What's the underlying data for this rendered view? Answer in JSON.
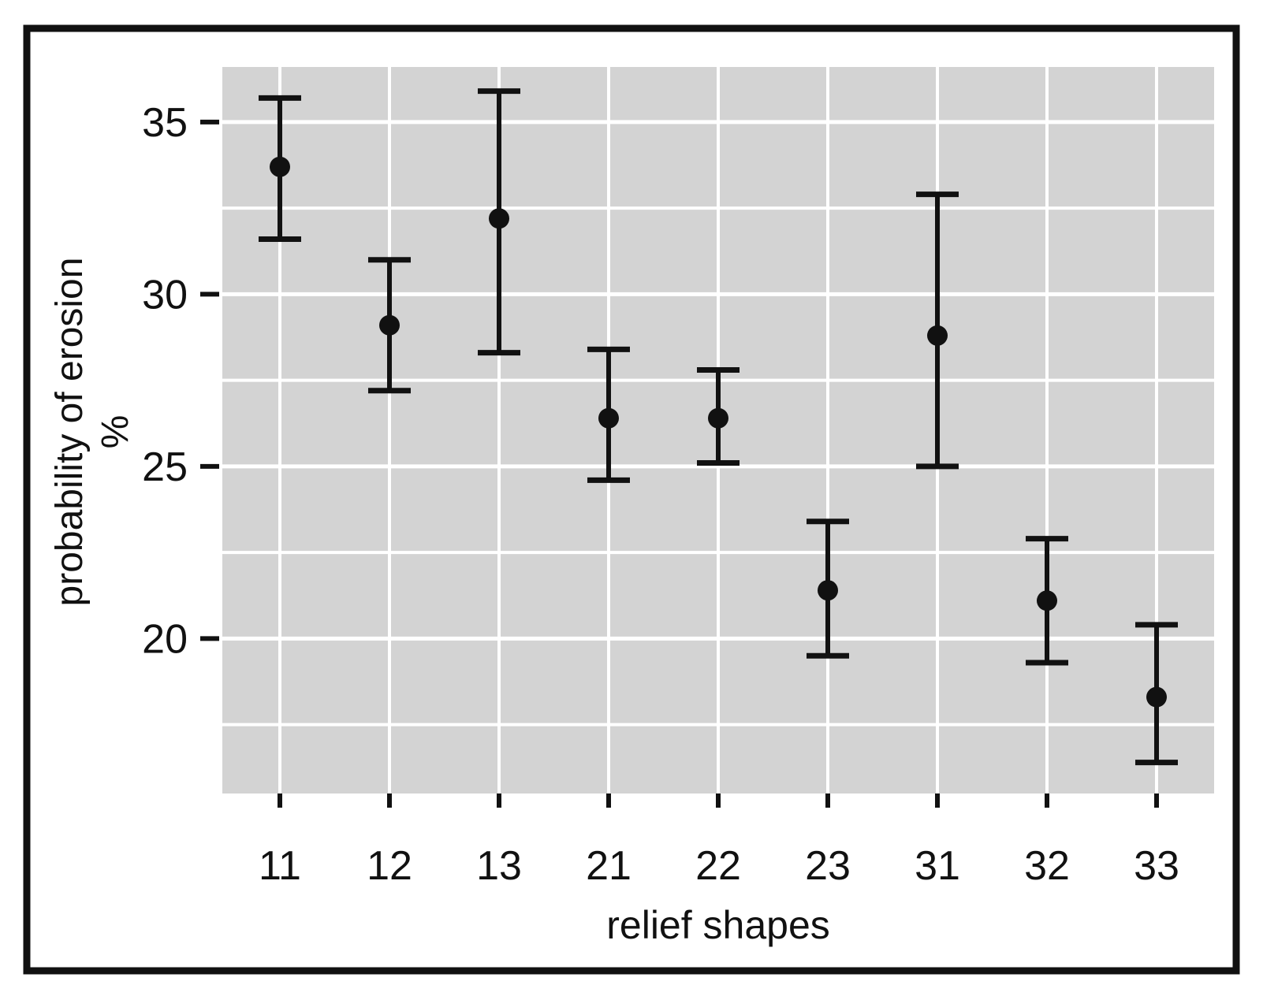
{
  "figure": {
    "description": "scatter plot with vertical error bars on gray panel",
    "page_bg": "#ffffff",
    "border_color": "#111111",
    "panel_bg": "#d3d3d3",
    "grid_color": "#ffffff",
    "marker_color": "#111111"
  },
  "axes": {
    "x": {
      "title": "relief shapes",
      "tick_labels": [
        "11",
        "12",
        "13",
        "21",
        "22",
        "23",
        "31",
        "32",
        "33"
      ]
    },
    "y": {
      "title_lines": [
        "probability of erosion",
        "%"
      ],
      "tick_labels": [
        "35",
        "30",
        "25",
        "20"
      ]
    }
  },
  "chart_data": {
    "type": "scatter",
    "title": "",
    "xlabel": "relief shapes",
    "ylabel": "probability of erosion %",
    "categories": [
      "11",
      "12",
      "13",
      "21",
      "22",
      "23",
      "31",
      "32",
      "33"
    ],
    "series": [
      {
        "name": "probability of erosion",
        "values": [
          33.7,
          29.1,
          32.2,
          26.4,
          26.4,
          21.4,
          28.8,
          21.1,
          18.3
        ],
        "error_low": [
          31.6,
          27.2,
          28.3,
          24.6,
          25.1,
          19.5,
          25.0,
          19.3,
          16.4
        ],
        "error_high": [
          35.7,
          31.0,
          35.9,
          28.4,
          27.8,
          23.4,
          32.9,
          22.9,
          20.4
        ]
      }
    ],
    "ylim": [
      15.5,
      36.6
    ],
    "yticks": [
      20,
      25,
      30,
      35
    ],
    "yticks_minor": [
      17.5,
      22.5,
      27.5,
      32.5
    ],
    "grid": {
      "show": true,
      "panel_bg": "#d3d3d3",
      "major_color": "#ffffff",
      "minor_color": "#ffffff",
      "x_gridlines_at_categories": true
    },
    "legend": "none",
    "marker": {
      "shape": "circle",
      "color": "#111111",
      "radius_px": 13
    }
  }
}
